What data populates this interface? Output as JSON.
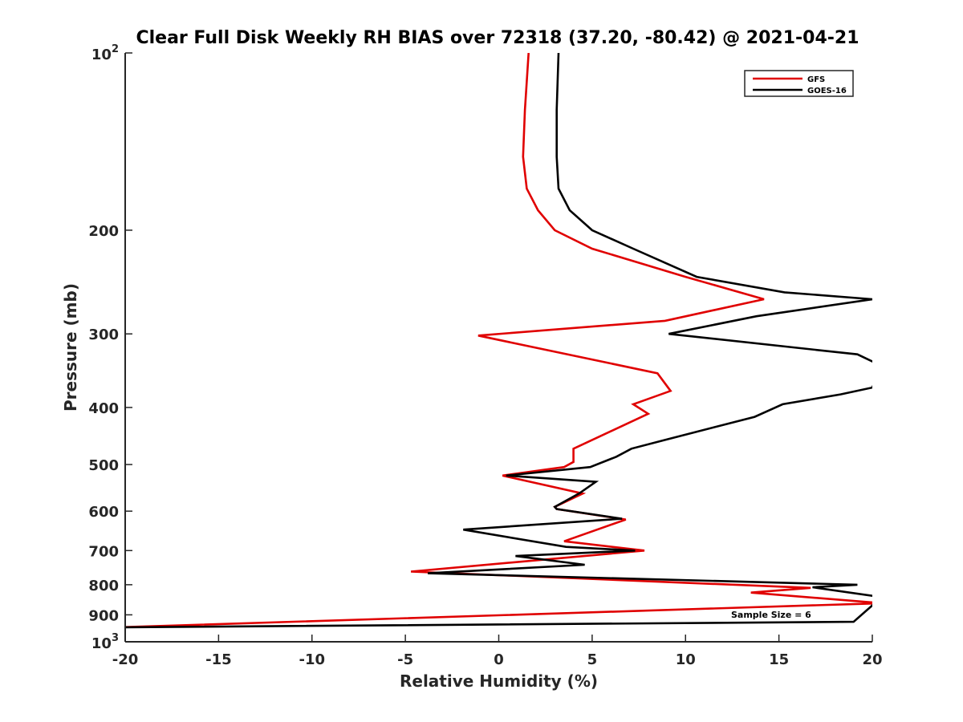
{
  "chart_data": {
    "type": "line",
    "title": "Clear Full Disk Weekly RH BIAS over 72318 (37.20, -80.42) @ 2021-04-21",
    "xlabel": "Relative Humidity (%)",
    "ylabel": "Pressure (mb)",
    "xlim": [
      -20,
      20
    ],
    "ylim": [
      100,
      1000
    ],
    "y_scale": "log",
    "y_reversed": true,
    "x_ticks": [
      "-20",
      "-15",
      "-10",
      "-5",
      "0",
      "5",
      "10",
      "15",
      "20"
    ],
    "y_ticks": [
      {
        "value": 100,
        "base": "10",
        "exp": "2"
      },
      {
        "value": 200,
        "label": "200"
      },
      {
        "value": 300,
        "label": "300"
      },
      {
        "value": 400,
        "label": "400"
      },
      {
        "value": 500,
        "label": "500"
      },
      {
        "value": 600,
        "label": "600"
      },
      {
        "value": 700,
        "label": "700"
      },
      {
        "value": 800,
        "label": "800"
      },
      {
        "value": 900,
        "label": "900"
      },
      {
        "value": 1000,
        "base": "10",
        "exp": "3"
      }
    ],
    "grid": false,
    "legend_position": "top-right",
    "annotation": "Sample Size = 6",
    "series": [
      {
        "name": "GFS",
        "color": "#e00000",
        "x": [
          1.6,
          1.4,
          1.3,
          1.5,
          2.1,
          3.0,
          5.0,
          10.0,
          14.2,
          8.9,
          -1.1,
          8.5,
          9.2,
          7.2,
          8.0,
          4.0,
          4.0,
          3.5,
          0.2,
          4.5,
          3.0,
          3.1,
          6.8,
          3.5,
          7.8,
          -4.7,
          16.7,
          13.5,
          20.5,
          -20.5
        ],
        "y": [
          100,
          125,
          150,
          170,
          185,
          200,
          215,
          240,
          262,
          285,
          302,
          350,
          375,
          395,
          410,
          470,
          495,
          505,
          522,
          560,
          590,
          595,
          620,
          675,
          700,
          760,
          810,
          825,
          860,
          945
        ]
      },
      {
        "name": "GOES-16",
        "color": "#000000",
        "x": [
          3.2,
          3.1,
          3.1,
          3.2,
          3.8,
          5.0,
          7.2,
          10.6,
          15.3,
          20.0,
          13.8,
          9.1,
          19.2,
          20.5,
          20.0,
          18.3,
          15.2,
          13.7,
          8.8,
          7.1,
          6.3,
          4.9,
          0.4,
          5.2,
          4.3,
          3.0,
          3.1,
          6.6,
          -1.9,
          3.6,
          7.3,
          0.9,
          4.6,
          -3.8,
          19.2,
          16.8,
          20.5,
          19.0,
          -20.5
        ],
        "y": [
          100,
          125,
          150,
          170,
          185,
          200,
          215,
          240,
          255,
          262,
          280,
          300,
          325,
          340,
          370,
          380,
          395,
          415,
          455,
          470,
          485,
          505,
          522,
          535,
          560,
          590,
          595,
          618,
          645,
          690,
          700,
          715,
          740,
          765,
          800,
          808,
          840,
          925,
          945
        ]
      }
    ]
  }
}
